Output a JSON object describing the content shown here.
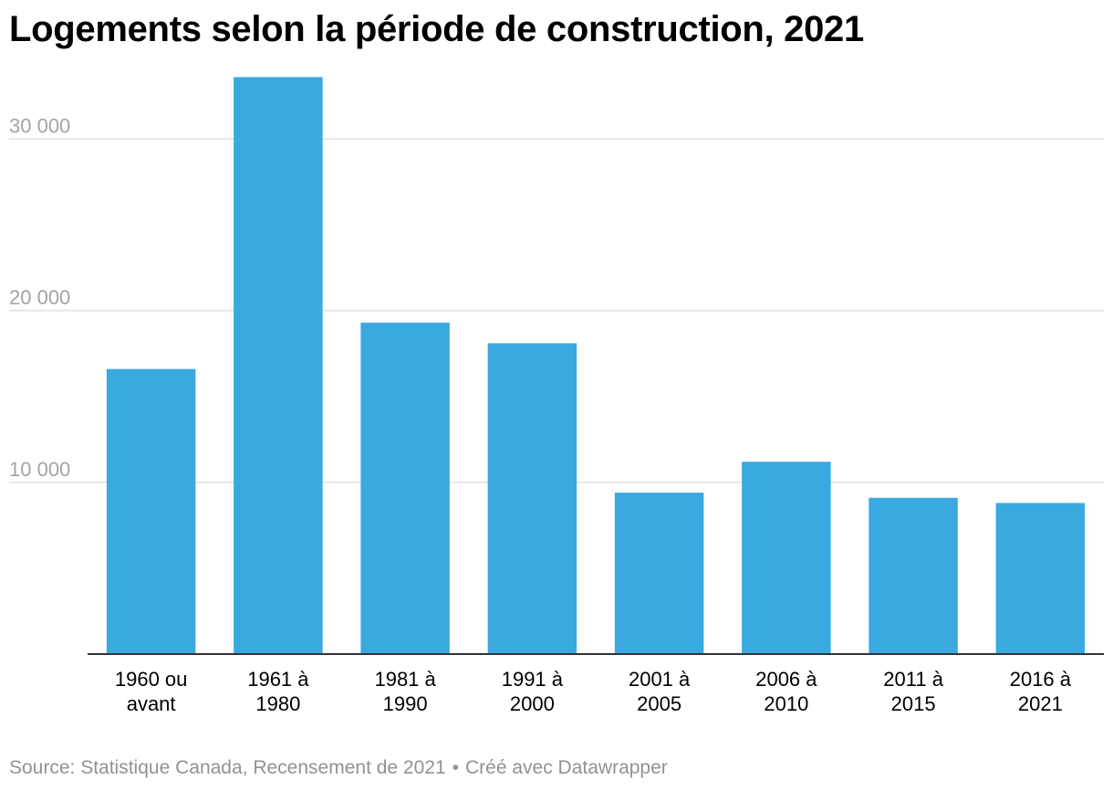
{
  "chart_data": {
    "type": "bar",
    "title": "Logements selon la période de construction, 2021",
    "xlabel": "",
    "ylabel": "",
    "categories": [
      [
        "1960 ou",
        "avant"
      ],
      [
        "1961 à",
        "1980"
      ],
      [
        "1981 à",
        "1990"
      ],
      [
        "1991 à",
        "2000"
      ],
      [
        "2001 à",
        "2005"
      ],
      [
        "2006 à",
        "2010"
      ],
      [
        "2011 à",
        "2015"
      ],
      [
        "2016 à",
        "2021"
      ]
    ],
    "values": [
      16600,
      33600,
      19300,
      18100,
      9400,
      11200,
      9100,
      8800
    ],
    "ylim": [
      0,
      34000
    ],
    "yticks": [
      10000,
      20000,
      30000
    ],
    "ytick_labels": [
      "10 000",
      "20 000",
      "30 000"
    ],
    "grid": true,
    "bar_color": "#39a9e0",
    "grid_color": "#e0e0e0",
    "tick_label_color": "#a3a3a3",
    "baseline_color": "#333333"
  },
  "footer": {
    "source": "Source: Statistique Canada, Recensement de 2021",
    "separator": "•",
    "credit": "Créé avec Datawrapper"
  }
}
